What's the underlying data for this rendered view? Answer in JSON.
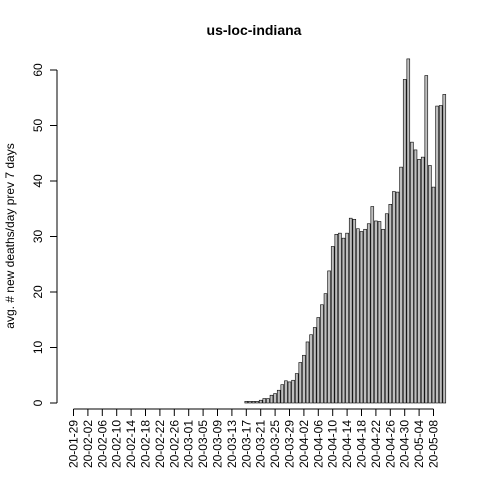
{
  "chart_data": {
    "type": "bar",
    "title": "us-loc-indiana",
    "xlabel": "",
    "ylabel": "avg. # new deaths/day prev  7  days",
    "ylim": [
      0,
      62
    ],
    "yticks": [
      0,
      10,
      20,
      30,
      40,
      50,
      60
    ],
    "grid": false,
    "bar_fill": "#bebebe",
    "bar_stroke": "#000000",
    "start_date": "2020-01-29",
    "tick_every_days": 4,
    "tick_labels": [
      "20-01-29",
      "20-02-02",
      "20-02-06",
      "20-02-10",
      "20-02-14",
      "20-02-18",
      "20-02-22",
      "20-02-26",
      "20-03-01",
      "20-03-05",
      "20-03-09",
      "20-03-13",
      "20-03-17",
      "20-03-21",
      "20-03-25",
      "20-03-29",
      "20-04-02",
      "20-04-06",
      "20-04-10",
      "20-04-14",
      "20-04-18",
      "20-04-22",
      "20-04-26",
      "20-04-30",
      "20-05-04",
      "20-05-08"
    ],
    "values": [
      0,
      0,
      0,
      0,
      0,
      0,
      0,
      0,
      0,
      0,
      0,
      0,
      0,
      0,
      0,
      0,
      0,
      0,
      0,
      0,
      0,
      0,
      0,
      0,
      0,
      0,
      0,
      0,
      0,
      0,
      0,
      0,
      0,
      0,
      0,
      0,
      0,
      0,
      0,
      0,
      0,
      0,
      0,
      0,
      0,
      0,
      0,
      0,
      0.3,
      0.3,
      0.3,
      0.3,
      0.5,
      0.8,
      0.8,
      1.4,
      1.7,
      2.3,
      3.3,
      4.0,
      3.8,
      4.1,
      5.3,
      7.3,
      8.6,
      11.0,
      12.3,
      13.6,
      15.4,
      17.7,
      19.7,
      23.8,
      28.2,
      30.4,
      30.6,
      29.7,
      30.6,
      33.3,
      33.1,
      31.4,
      30.9,
      31.3,
      32.3,
      35.4,
      32.8,
      32.7,
      31.3,
      34.1,
      35.8,
      38.1,
      38.0,
      42.5,
      58.3,
      62.0,
      47.0,
      45.6,
      43.9,
      44.3,
      59.0,
      42.8,
      38.9,
      53.5,
      53.6,
      55.6
    ]
  }
}
